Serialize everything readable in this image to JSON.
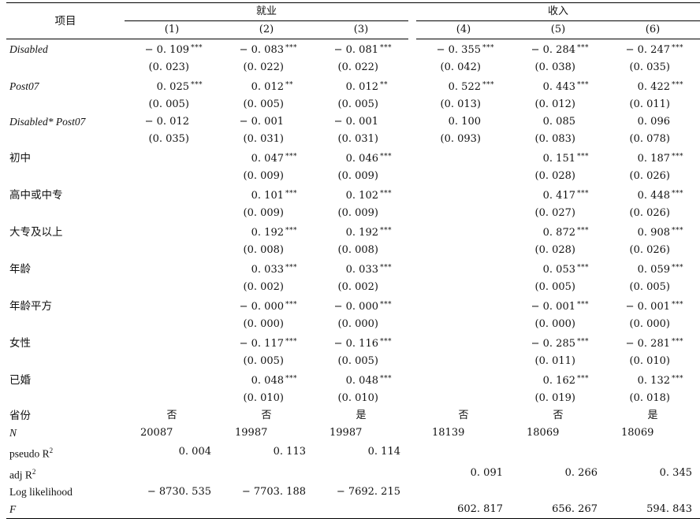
{
  "header": {
    "item_label": "项目",
    "group_employment": "就业",
    "group_income": "收入",
    "columns": [
      "(1)",
      "(2)",
      "(3)",
      "(4)",
      "(5)",
      "(6)"
    ]
  },
  "rows": [
    {
      "label": "Disabled",
      "italic": true,
      "coef": [
        [
          "− 0. 109",
          "***"
        ],
        [
          "− 0. 083",
          "***"
        ],
        [
          "− 0. 081",
          "***"
        ],
        [
          "− 0. 355",
          "***"
        ],
        [
          "− 0. 284",
          "***"
        ],
        [
          "− 0. 247",
          "***"
        ]
      ],
      "se": [
        "(0. 023)",
        "(0. 022)",
        "(0. 022)",
        "(0. 042)",
        "(0. 038)",
        "(0. 035)"
      ]
    },
    {
      "label": "Post07",
      "italic": true,
      "coef": [
        [
          "0. 025",
          "***"
        ],
        [
          "0. 012",
          "**"
        ],
        [
          "0. 012",
          "**"
        ],
        [
          "0. 522",
          "***"
        ],
        [
          "0. 443",
          "***"
        ],
        [
          "0. 422",
          "***"
        ]
      ],
      "se": [
        "(0. 005)",
        "(0. 005)",
        "(0. 005)",
        "(0. 013)",
        "(0. 012)",
        "(0. 011)"
      ]
    },
    {
      "label": "Disabled* Post07",
      "italic": true,
      "coef": [
        [
          "− 0. 012",
          ""
        ],
        [
          "− 0. 001",
          ""
        ],
        [
          "− 0. 001",
          ""
        ],
        [
          "0. 100",
          ""
        ],
        [
          "0. 085",
          ""
        ],
        [
          "0. 096",
          ""
        ]
      ],
      "se": [
        "(0. 035)",
        "(0. 031)",
        "(0. 031)",
        "(0. 093)",
        "(0. 083)",
        "(0. 078)"
      ]
    },
    {
      "label": "初中",
      "italic": false,
      "coef": [
        [
          "",
          ""
        ],
        [
          "0. 047",
          "***"
        ],
        [
          "0. 046",
          "***"
        ],
        [
          "",
          ""
        ],
        [
          "0. 151",
          "***"
        ],
        [
          "0. 187",
          "***"
        ]
      ],
      "se": [
        "",
        "(0. 009)",
        "(0. 009)",
        "",
        "(0. 028)",
        "(0. 026)"
      ]
    },
    {
      "label": "高中或中专",
      "italic": false,
      "coef": [
        [
          "",
          ""
        ],
        [
          "0. 101",
          "***"
        ],
        [
          "0. 102",
          "***"
        ],
        [
          "",
          ""
        ],
        [
          "0. 417",
          "***"
        ],
        [
          "0. 448",
          "***"
        ]
      ],
      "se": [
        "",
        "(0. 009)",
        "(0. 009)",
        "",
        "(0. 027)",
        "(0. 026)"
      ]
    },
    {
      "label": "大专及以上",
      "italic": false,
      "coef": [
        [
          "",
          ""
        ],
        [
          "0. 192",
          "***"
        ],
        [
          "0. 192",
          "***"
        ],
        [
          "",
          ""
        ],
        [
          "0. 872",
          "***"
        ],
        [
          "0. 908",
          "***"
        ]
      ],
      "se": [
        "",
        "(0. 008)",
        "(0. 008)",
        "",
        "(0. 028)",
        "(0. 026)"
      ]
    },
    {
      "label": "年龄",
      "italic": false,
      "coef": [
        [
          "",
          ""
        ],
        [
          "0. 033",
          "***"
        ],
        [
          "0. 033",
          "***"
        ],
        [
          "",
          ""
        ],
        [
          "0. 053",
          "***"
        ],
        [
          "0. 059",
          "***"
        ]
      ],
      "se": [
        "",
        "(0. 002)",
        "(0. 002)",
        "",
        "(0. 005)",
        "(0. 005)"
      ]
    },
    {
      "label": "年龄平方",
      "italic": false,
      "coef": [
        [
          "",
          ""
        ],
        [
          "− 0. 000",
          "***"
        ],
        [
          "− 0. 000",
          "***"
        ],
        [
          "",
          ""
        ],
        [
          "− 0. 001",
          "***"
        ],
        [
          "− 0. 001",
          "***"
        ]
      ],
      "se": [
        "",
        "(0. 000)",
        "(0. 000)",
        "",
        "(0. 000)",
        "(0. 000)"
      ]
    },
    {
      "label": "女性",
      "italic": false,
      "coef": [
        [
          "",
          ""
        ],
        [
          "− 0. 117",
          "***"
        ],
        [
          "− 0. 116",
          "***"
        ],
        [
          "",
          ""
        ],
        [
          "− 0. 285",
          "***"
        ],
        [
          "− 0. 281",
          "***"
        ]
      ],
      "se": [
        "",
        "(0. 005)",
        "(0. 005)",
        "",
        "(0. 011)",
        "(0. 010)"
      ]
    },
    {
      "label": "已婚",
      "italic": false,
      "coef": [
        [
          "",
          ""
        ],
        [
          "0. 048",
          "***"
        ],
        [
          "0. 048",
          "***"
        ],
        [
          "",
          ""
        ],
        [
          "0. 162",
          "***"
        ],
        [
          "0. 132",
          "***"
        ]
      ],
      "se": [
        "",
        "(0. 010)",
        "(0. 010)",
        "",
        "(0. 019)",
        "(0. 018)"
      ]
    }
  ],
  "footer": {
    "province": {
      "label": "省份",
      "values": [
        "否",
        "否",
        "是",
        "否",
        "否",
        "是"
      ]
    },
    "n": {
      "label": "N",
      "values": [
        "20087",
        "19987",
        "19987",
        "18139",
        "18069",
        "18069"
      ]
    },
    "pseudo_r2": {
      "label": "pseudo R",
      "sup": "2",
      "values": [
        "0. 004",
        "0. 113",
        "0. 114",
        "",
        "",
        ""
      ]
    },
    "adj_r2": {
      "label": "adj R",
      "sup": "2",
      "values": [
        "",
        "",
        "",
        "0. 091",
        "0. 266",
        "0. 345"
      ]
    },
    "loglik": {
      "label": "Log likelihood",
      "values": [
        "− 8730. 535",
        "− 7703. 188",
        "− 7692. 215",
        "",
        "",
        ""
      ]
    },
    "f": {
      "label": "F",
      "values": [
        "",
        "",
        "",
        "602. 817",
        "656. 267",
        "594. 843"
      ]
    }
  }
}
